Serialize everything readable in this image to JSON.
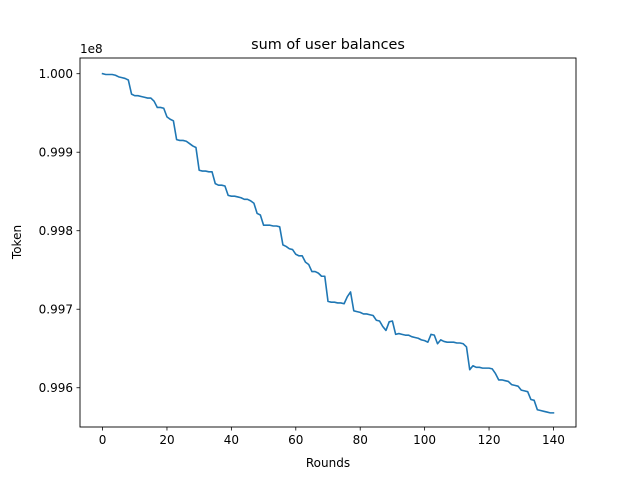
{
  "chart_data": {
    "type": "line",
    "title": "sum of user balances",
    "xlabel": "Rounds",
    "ylabel": "Token",
    "y_offset_label": "1e8",
    "xlim": [
      -7,
      147
    ],
    "ylim": [
      0.9955,
      1.0002
    ],
    "x_ticks": [
      0,
      20,
      40,
      60,
      80,
      100,
      120,
      140
    ],
    "x_tick_labels": [
      "0",
      "20",
      "40",
      "60",
      "80",
      "100",
      "120",
      "140"
    ],
    "y_ticks": [
      0.996,
      0.997,
      0.998,
      0.999,
      1.0
    ],
    "y_tick_labels": [
      "0.996",
      "0.997",
      "0.998",
      "0.999",
      "1.000"
    ],
    "grid": false,
    "series": [
      {
        "color": "#1f77b4",
        "x": [
          0,
          1,
          2,
          3,
          4,
          5,
          6,
          7,
          8,
          9,
          10,
          11,
          12,
          13,
          14,
          15,
          16,
          17,
          18,
          19,
          20,
          21,
          22,
          23,
          24,
          25,
          26,
          27,
          28,
          29,
          30,
          31,
          32,
          33,
          34,
          35,
          36,
          37,
          38,
          39,
          40,
          41,
          42,
          43,
          44,
          45,
          46,
          47,
          48,
          49,
          50,
          51,
          52,
          53,
          54,
          55,
          56,
          57,
          58,
          59,
          60,
          61,
          62,
          63,
          64,
          65,
          66,
          67,
          68,
          69,
          70,
          71,
          72,
          73,
          74,
          75,
          76,
          77,
          78,
          79,
          80,
          81,
          82,
          83,
          84,
          85,
          86,
          87,
          88,
          89,
          90,
          91,
          92,
          93,
          94,
          95,
          96,
          97,
          98,
          99,
          100,
          101,
          102,
          103,
          104,
          105,
          106,
          107,
          108,
          109,
          110,
          111,
          112,
          113,
          114,
          115,
          116,
          117,
          118,
          119,
          120,
          121,
          122,
          123,
          124,
          125,
          126,
          127,
          128,
          129,
          130,
          131,
          132,
          133,
          134,
          135,
          136,
          137,
          138,
          139,
          140
        ],
        "values": [
          1.0,
          0.99999,
          0.99999,
          0.99999,
          0.99998,
          0.99996,
          0.99995,
          0.99994,
          0.99992,
          0.99974,
          0.99972,
          0.99972,
          0.99971,
          0.9997,
          0.99969,
          0.99969,
          0.99965,
          0.99957,
          0.99957,
          0.99956,
          0.99945,
          0.99942,
          0.9994,
          0.99916,
          0.99915,
          0.99915,
          0.99914,
          0.99911,
          0.99908,
          0.99906,
          0.99877,
          0.99876,
          0.99876,
          0.99875,
          0.99875,
          0.9986,
          0.99858,
          0.99858,
          0.99857,
          0.99845,
          0.99844,
          0.99844,
          0.99843,
          0.99842,
          0.9984,
          0.9984,
          0.99838,
          0.99835,
          0.99822,
          0.9982,
          0.99807,
          0.99807,
          0.99807,
          0.99806,
          0.99806,
          0.99805,
          0.99782,
          0.9978,
          0.99777,
          0.99776,
          0.9977,
          0.99768,
          0.99768,
          0.9976,
          0.99757,
          0.99748,
          0.99748,
          0.99746,
          0.99742,
          0.99742,
          0.9971,
          0.99709,
          0.99709,
          0.99708,
          0.99708,
          0.99707,
          0.99716,
          0.99722,
          0.99698,
          0.99697,
          0.99696,
          0.99694,
          0.99694,
          0.99693,
          0.99692,
          0.99686,
          0.99685,
          0.99678,
          0.99673,
          0.99684,
          0.99685,
          0.99668,
          0.99669,
          0.99668,
          0.99667,
          0.99667,
          0.99665,
          0.99664,
          0.99663,
          0.99661,
          0.9966,
          0.99658,
          0.99668,
          0.99667,
          0.99656,
          0.99661,
          0.99659,
          0.99658,
          0.99658,
          0.99658,
          0.99657,
          0.99657,
          0.99656,
          0.99652,
          0.99623,
          0.99628,
          0.99626,
          0.99626,
          0.99625,
          0.99625,
          0.99625,
          0.99624,
          0.99618,
          0.9961,
          0.9961,
          0.99609,
          0.99608,
          0.99604,
          0.99603,
          0.99602,
          0.99597,
          0.99596,
          0.99595,
          0.99585,
          0.99584,
          0.99572,
          0.99571,
          0.9957,
          0.99569,
          0.99568,
          0.99568
        ]
      }
    ]
  }
}
